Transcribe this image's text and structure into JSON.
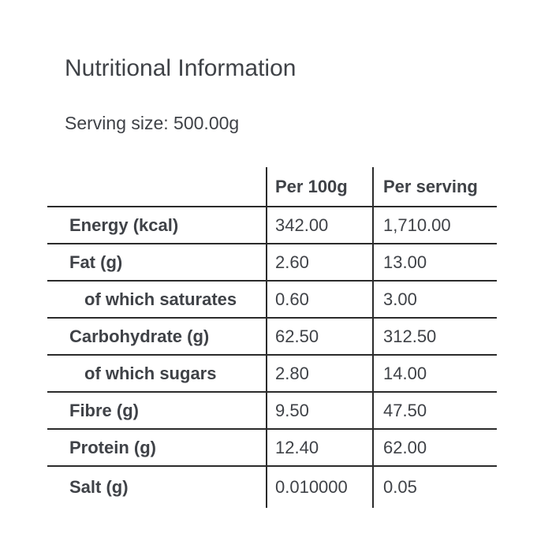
{
  "page": {
    "title": "Nutritional Information",
    "serving_size": "Serving size: 500.00g"
  },
  "colors": {
    "text": "#3f4247",
    "rule": "#2b2b2b",
    "background": "#ffffff"
  },
  "table": {
    "columns": [
      "",
      "Per 100g",
      "Per serving"
    ],
    "rows": [
      {
        "label": "Energy (kcal)",
        "indent": false,
        "per_100g": "342.00",
        "per_serving": "1,710.00"
      },
      {
        "label": "Fat (g)",
        "indent": false,
        "per_100g": "2.60",
        "per_serving": "13.00"
      },
      {
        "label": "of which saturates",
        "indent": true,
        "per_100g": "0.60",
        "per_serving": "3.00"
      },
      {
        "label": "Carbohydrate (g)",
        "indent": false,
        "per_100g": "62.50",
        "per_serving": "312.50"
      },
      {
        "label": "of which sugars",
        "indent": true,
        "per_100g": "2.80",
        "per_serving": "14.00"
      },
      {
        "label": "Fibre (g)",
        "indent": false,
        "per_100g": "9.50",
        "per_serving": "47.50"
      },
      {
        "label": "Protein (g)",
        "indent": false,
        "per_100g": "12.40",
        "per_serving": "62.00"
      },
      {
        "label": "Salt (g)",
        "indent": false,
        "per_100g": "0.010000",
        "per_serving": "0.05"
      }
    ]
  }
}
